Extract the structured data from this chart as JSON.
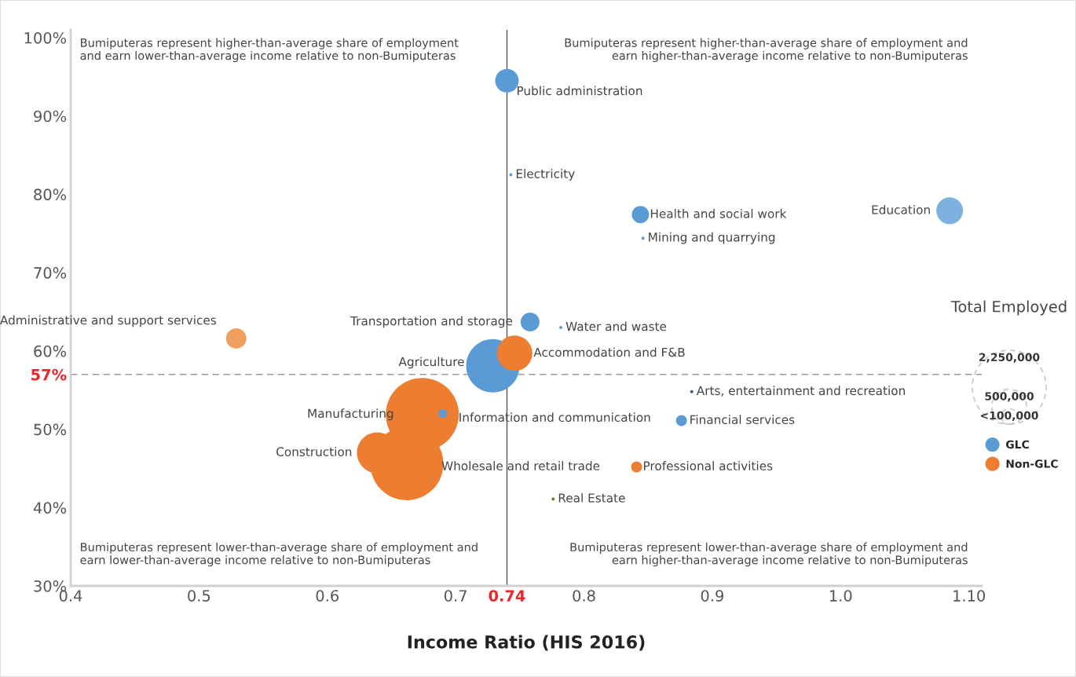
{
  "chart_data": {
    "type": "bubble",
    "xlabel": "Income Ratio (HIS 2016)",
    "xlim": [
      0.4,
      1.11
    ],
    "xticks": [
      0.4,
      0.5,
      0.6,
      0.7,
      {
        "value": 0.74,
        "label": "0.74"
      },
      0.8,
      0.9,
      {
        "value": 1.0,
        "label": "1.0"
      },
      {
        "value": 1.1,
        "label": "1.10"
      }
    ],
    "ylim": [
      30,
      101
    ],
    "yticks": [
      {
        "value": 30,
        "label": "30%"
      },
      {
        "value": 40,
        "label": "40%"
      },
      {
        "value": 50,
        "label": "50%"
      },
      {
        "value": 57,
        "label": "57%"
      },
      {
        "value": 60,
        "label": "60%"
      },
      {
        "value": 70,
        "label": "70%"
      },
      {
        "value": 80,
        "label": "80%"
      },
      {
        "value": 90,
        "label": "90%"
      },
      {
        "value": 100,
        "label": "100%"
      }
    ],
    "ref_lines": [
      {
        "axis": "x",
        "value": 0.74,
        "color": "#555555",
        "line_style": "solid"
      },
      {
        "axis": "y",
        "value": 57,
        "color": "#999999",
        "line_style": "dashed"
      }
    ],
    "legend": "right",
    "legend_title": "Total Employed",
    "size_legend": [
      {
        "value": 2250000,
        "label": "2,250,000"
      },
      {
        "value": 500000,
        "label": "500,000"
      },
      {
        "value": 100000,
        "label": "<100,000"
      }
    ],
    "series": [
      {
        "name": "GLC",
        "color": "#5b9bd5",
        "x": [
          0.74,
          0.743,
          0.844,
          0.846,
          1.085,
          0.758,
          0.782,
          0.729,
          0.69,
          0.884,
          0.876,
          0.776
        ],
        "values": [
          94.5,
          82.5,
          77.4,
          74.4,
          77.9,
          63.7,
          63.0,
          58.1,
          52.0,
          54.8,
          51.1,
          41.1
        ],
        "sizes": [
          230000,
          4000,
          123000,
          4000,
          295000,
          147000,
          4000,
          1180000,
          31000,
          4000,
          50000,
          4000
        ],
        "colors": [
          "#5b9bd5",
          "#5b9bd5",
          "#5b9bd5",
          "#5b9bd5",
          "#7fb1e0",
          "#5b9bd5",
          "#5b9bd5",
          "#5b9bd5",
          "#5b9bd5",
          "#2f5597",
          "#5b9bd5",
          "#548235"
        ]
      },
      {
        "name": "Non-GLC",
        "color": "#ed7d31",
        "x": [
          0.529,
          0.746,
          0.674,
          0.639,
          0.662,
          0.841
        ],
        "values": [
          61.6,
          59.7,
          51.9,
          47.0,
          45.6,
          45.2
        ],
        "sizes": [
          172000,
          515000,
          2200000,
          690000,
          2200000,
          50000
        ],
        "colors": [
          "#f0a05e",
          "#ed7d31",
          "#ed7d31",
          "#ed7d31",
          "#ed7d31",
          "#ed7d31"
        ]
      }
    ],
    "annotations": [
      "Bumiputeras represent higher-than-average share of employment\nand earn lower-than-average income relative to non-Bumiputeras",
      "Bumiputeras represent higher-than-average share of employment and\nearn higher-than-average income relative to non-Bumiputeras",
      "Bumiputeras represent lower-than-average share of employment and\nearn lower-than-average income relative to non-Bumiputeras",
      "Bumiputeras represent lower-than-average share of employment and\nearn higher-than-average income relative to non-Bumiputeras",
      {
        "text": "Public administration",
        "x": 0.74,
        "y": 94.5
      },
      {
        "text": "Electricity",
        "x": 0.743,
        "y": 82.5
      },
      {
        "text": "Health and social work",
        "x": 0.844,
        "y": 77.4
      },
      {
        "text": "Mining and quarrying",
        "x": 0.846,
        "y": 74.4
      },
      {
        "text": "Education",
        "x": 1.085,
        "y": 77.9
      },
      {
        "text": "Transportation and storage",
        "x": 0.758,
        "y": 63.7
      },
      {
        "text": "Water and waste",
        "x": 0.782,
        "y": 63.0
      },
      {
        "text": "Agriculture",
        "x": 0.729,
        "y": 58.1
      },
      {
        "text": "Information and communication",
        "x": 0.69,
        "y": 52.0
      },
      {
        "text": "Arts, entertainment and recreation",
        "x": 0.884,
        "y": 54.8
      },
      {
        "text": "Financial services",
        "x": 0.876,
        "y": 51.1
      },
      {
        "text": "Real Estate",
        "x": 0.776,
        "y": 41.1
      },
      {
        "text": "Administrative and support services",
        "x": 0.529,
        "y": 61.6
      },
      {
        "text": "Accommodation and F&B",
        "x": 0.746,
        "y": 59.7
      },
      {
        "text": "Manufacturing",
        "x": 0.674,
        "y": 51.9
      },
      {
        "text": "Construction",
        "x": 0.639,
        "y": 47.0
      },
      {
        "text": "Wholesale and retail trade",
        "x": 0.662,
        "y": 45.6
      },
      {
        "text": "Professional activities",
        "x": 0.841,
        "y": 45.2
      }
    ]
  }
}
